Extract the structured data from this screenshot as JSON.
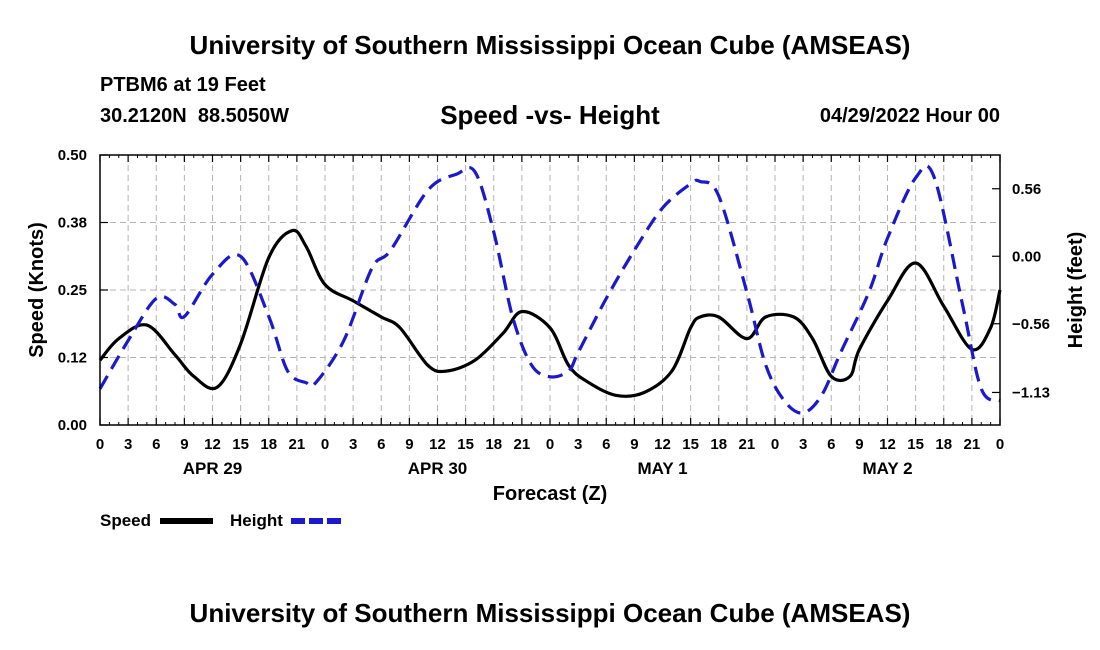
{
  "title": "University of Southern Mississippi Ocean Cube (AMSEAS)",
  "station": "PTBM6 at 19 Feet",
  "coords": "30.2120N  88.5050W",
  "subtitle": "Speed -vs- Height",
  "date": "04/29/2022 Hour 00",
  "footer_title": "University of Southern Mississippi Ocean Cube (AMSEAS)",
  "colors": {
    "speed": "#000000",
    "height": "#1a1acc",
    "grid": "#b4b4b4"
  },
  "chart_data": {
    "type": "line",
    "xlabel": "Forecast (Z)",
    "ylabel": "Speed (Knots)",
    "y2label": "Height (feet)",
    "xlim": [
      0,
      96
    ],
    "ylim": [
      0,
      0.5
    ],
    "y2lim": [
      -1.4,
      0.84
    ],
    "x_tick_labels": [
      "0",
      "3",
      "6",
      "9",
      "12",
      "15",
      "18",
      "21",
      "0",
      "3",
      "6",
      "9",
      "12",
      "15",
      "18",
      "21",
      "0",
      "3",
      "6",
      "9",
      "12",
      "15",
      "18",
      "21",
      "0",
      "3",
      "6",
      "9",
      "12",
      "15",
      "18",
      "21",
      "0"
    ],
    "y_ticks": [
      {
        "value": 0.0,
        "label": "0.00"
      },
      {
        "value": 0.125,
        "label": "0.12"
      },
      {
        "value": 0.25,
        "label": "0.25"
      },
      {
        "value": 0.375,
        "label": "0.38"
      },
      {
        "value": 0.5,
        "label": "0.50"
      }
    ],
    "y2_ticks": [
      {
        "value": 0.56,
        "label": "0.56"
      },
      {
        "value": 0.0,
        "label": "0.00"
      },
      {
        "value": -0.56,
        "label": "−0.56"
      },
      {
        "value": -1.13,
        "label": "−1.13"
      }
    ],
    "day_labels": [
      {
        "x": 12,
        "label": "APR 29"
      },
      {
        "x": 36,
        "label": "APR 30"
      },
      {
        "x": 60,
        "label": "MAY 1"
      },
      {
        "x": 84,
        "label": "MAY 2"
      }
    ],
    "series": [
      {
        "name": "Speed",
        "axis": "left",
        "style": "solid",
        "x": [
          0,
          2,
          5,
          8,
          10,
          12.5,
          15,
          18,
          20.5,
          22,
          24,
          27,
          30,
          32,
          35,
          37,
          40,
          43,
          45,
          48,
          50,
          52,
          55,
          58,
          61,
          63,
          64,
          66,
          69,
          71,
          74,
          76,
          78,
          80,
          81,
          84,
          87,
          90,
          93,
          95,
          96
        ],
        "values": [
          0.12,
          0.16,
          0.185,
          0.13,
          0.09,
          0.07,
          0.15,
          0.31,
          0.36,
          0.33,
          0.26,
          0.23,
          0.2,
          0.18,
          0.11,
          0.1,
          0.12,
          0.17,
          0.21,
          0.18,
          0.11,
          0.08,
          0.055,
          0.06,
          0.1,
          0.18,
          0.2,
          0.2,
          0.16,
          0.2,
          0.2,
          0.16,
          0.09,
          0.09,
          0.14,
          0.23,
          0.3,
          0.22,
          0.14,
          0.18,
          0.25
        ]
      },
      {
        "name": "Height",
        "axis": "right",
        "style": "dashed",
        "x": [
          0,
          3,
          6,
          8,
          9,
          12,
          15,
          18,
          20,
          22,
          23,
          26,
          29,
          31,
          35,
          38,
          40,
          42,
          44,
          46,
          48,
          50,
          51,
          54,
          57,
          60,
          63,
          64,
          66,
          69,
          71,
          73,
          75,
          77,
          79,
          82,
          84,
          87,
          89,
          92,
          94,
          96
        ],
        "values": [
          -1.1,
          -0.7,
          -0.35,
          -0.4,
          -0.5,
          -0.15,
          0.0,
          -0.5,
          -0.95,
          -1.05,
          -1.05,
          -0.7,
          -0.1,
          0.05,
          0.55,
          0.68,
          0.7,
          0.2,
          -0.5,
          -0.9,
          -1.0,
          -0.95,
          -0.8,
          -0.35,
          0.05,
          0.4,
          0.6,
          0.62,
          0.5,
          -0.3,
          -0.9,
          -1.2,
          -1.3,
          -1.15,
          -0.8,
          -0.3,
          0.15,
          0.65,
          0.65,
          -0.4,
          -1.1,
          -1.2
        ]
      }
    ],
    "legend": [
      {
        "label": "Speed",
        "style": "solid"
      },
      {
        "label": "Height",
        "style": "dashed"
      }
    ]
  }
}
